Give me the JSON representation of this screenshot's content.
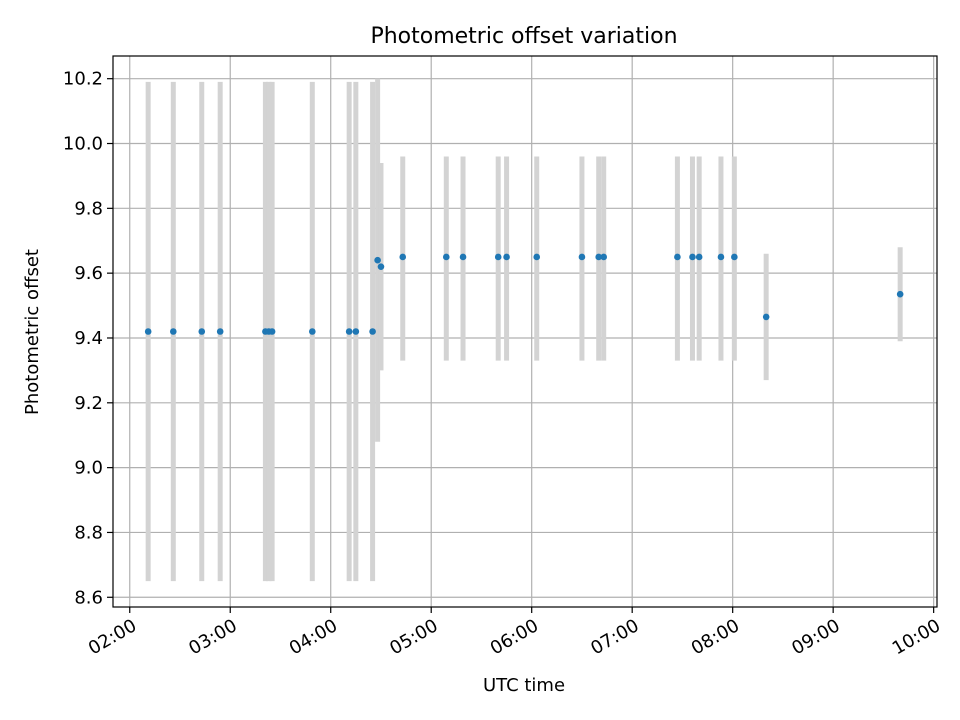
{
  "chart_data": {
    "type": "scatter",
    "title": "Photometric offset variation",
    "xlabel": "UTC time",
    "ylabel": "Photometric offset",
    "x_ticks": [
      "02:00",
      "03:00",
      "04:00",
      "05:00",
      "06:00",
      "07:00",
      "08:00",
      "09:00",
      "10:00"
    ],
    "y_ticks": [
      "8.6",
      "8.8",
      "9.0",
      "9.2",
      "9.4",
      "9.6",
      "9.8",
      "10.0",
      "10.2"
    ],
    "xlim": [
      "01:50",
      "10:02"
    ],
    "ylim": [
      8.57,
      10.27
    ],
    "grid": true,
    "point_color": "#1f77b4",
    "errorbar_color": "#d3d3d3",
    "points": [
      {
        "x": "02:11",
        "y": 9.42,
        "ylow": 8.65,
        "yhigh": 10.19
      },
      {
        "x": "02:26",
        "y": 9.42,
        "ylow": 8.65,
        "yhigh": 10.19
      },
      {
        "x": "02:43",
        "y": 9.42,
        "ylow": 8.65,
        "yhigh": 10.19
      },
      {
        "x": "02:54",
        "y": 9.42,
        "ylow": 8.65,
        "yhigh": 10.19
      },
      {
        "x": "03:21",
        "y": 9.42,
        "ylow": 8.65,
        "yhigh": 10.19
      },
      {
        "x": "03:23",
        "y": 9.42,
        "ylow": 8.65,
        "yhigh": 10.19
      },
      {
        "x": "03:25",
        "y": 9.42,
        "ylow": 8.65,
        "yhigh": 10.19
      },
      {
        "x": "03:49",
        "y": 9.42,
        "ylow": 8.65,
        "yhigh": 10.19
      },
      {
        "x": "04:11",
        "y": 9.42,
        "ylow": 8.65,
        "yhigh": 10.19
      },
      {
        "x": "04:15",
        "y": 9.42,
        "ylow": 8.65,
        "yhigh": 10.19
      },
      {
        "x": "04:25",
        "y": 9.42,
        "ylow": 8.65,
        "yhigh": 10.19
      },
      {
        "x": "04:28",
        "y": 9.64,
        "ylow": 9.08,
        "yhigh": 10.2
      },
      {
        "x": "04:30",
        "y": 9.62,
        "ylow": 9.3,
        "yhigh": 9.94
      },
      {
        "x": "04:43",
        "y": 9.65,
        "ylow": 9.33,
        "yhigh": 9.96
      },
      {
        "x": "05:09",
        "y": 9.65,
        "ylow": 9.33,
        "yhigh": 9.96
      },
      {
        "x": "05:19",
        "y": 9.65,
        "ylow": 9.33,
        "yhigh": 9.96
      },
      {
        "x": "05:40",
        "y": 9.65,
        "ylow": 9.33,
        "yhigh": 9.96
      },
      {
        "x": "05:45",
        "y": 9.65,
        "ylow": 9.33,
        "yhigh": 9.96
      },
      {
        "x": "06:03",
        "y": 9.65,
        "ylow": 9.33,
        "yhigh": 9.96
      },
      {
        "x": "06:30",
        "y": 9.65,
        "ylow": 9.33,
        "yhigh": 9.96
      },
      {
        "x": "06:40",
        "y": 9.65,
        "ylow": 9.33,
        "yhigh": 9.96
      },
      {
        "x": "06:43",
        "y": 9.65,
        "ylow": 9.33,
        "yhigh": 9.96
      },
      {
        "x": "07:27",
        "y": 9.65,
        "ylow": 9.33,
        "yhigh": 9.96
      },
      {
        "x": "07:36",
        "y": 9.65,
        "ylow": 9.33,
        "yhigh": 9.96
      },
      {
        "x": "07:40",
        "y": 9.65,
        "ylow": 9.33,
        "yhigh": 9.96
      },
      {
        "x": "07:53",
        "y": 9.65,
        "ylow": 9.33,
        "yhigh": 9.96
      },
      {
        "x": "08:01",
        "y": 9.65,
        "ylow": 9.33,
        "yhigh": 9.96
      },
      {
        "x": "08:20",
        "y": 9.465,
        "ylow": 9.27,
        "yhigh": 9.66
      },
      {
        "x": "09:40",
        "y": 9.535,
        "ylow": 9.39,
        "yhigh": 9.68
      }
    ]
  }
}
